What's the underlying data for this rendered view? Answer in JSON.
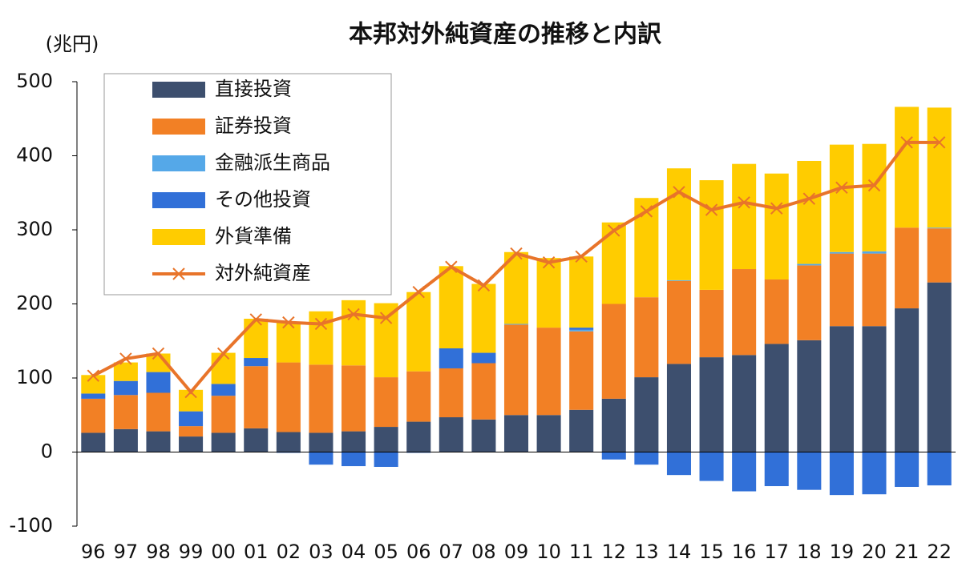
{
  "chart_data": {
    "type": "bar",
    "stacked": true,
    "title": "本邦対外純資産の推移と内訳",
    "y_label": "(兆円)",
    "categories": [
      "96",
      "97",
      "98",
      "99",
      "00",
      "01",
      "02",
      "03",
      "04",
      "05",
      "06",
      "07",
      "08",
      "09",
      "10",
      "11",
      "12",
      "13",
      "14",
      "15",
      "16",
      "17",
      "18",
      "19",
      "20",
      "21",
      "22"
    ],
    "ylim": [
      -100,
      500
    ],
    "yticks": [
      -100,
      0,
      100,
      200,
      300,
      400,
      500
    ],
    "legend": "upper left",
    "series": [
      {
        "name": "直接投資",
        "color": "#3d4f6e",
        "values": [
          26,
          31,
          28,
          21,
          26,
          32,
          27,
          26,
          28,
          34,
          41,
          47,
          44,
          50,
          50,
          57,
          72,
          101,
          119,
          128,
          131,
          146,
          151,
          170,
          170,
          194,
          229
        ]
      },
      {
        "name": "証券投資",
        "color": "#f28025",
        "values": [
          46,
          46,
          52,
          14,
          50,
          84,
          94,
          92,
          89,
          67,
          68,
          66,
          76,
          122,
          118,
          106,
          128,
          108,
          112,
          91,
          116,
          87,
          101,
          98,
          98,
          109,
          73
        ]
      },
      {
        "name": "金融派生商品",
        "color": "#55a8e8",
        "values": [
          0,
          0,
          0,
          0,
          0,
          0,
          0,
          0,
          0,
          0,
          0,
          0,
          0,
          1,
          0,
          2,
          0,
          0,
          1,
          0,
          0,
          0,
          2,
          2,
          3,
          0,
          1
        ]
      },
      {
        "name": "その他投資",
        "color": "#3170d8",
        "values": [
          7,
          19,
          28,
          20,
          16,
          11,
          -1,
          -17,
          -19,
          -20,
          -1,
          27,
          14,
          0,
          0,
          3,
          -10,
          -17,
          -31,
          -39,
          -53,
          -46,
          -51,
          -58,
          -57,
          -47,
          -45
        ]
      },
      {
        "name": "外貨準備",
        "color": "#ffcc00",
        "values": [
          25,
          25,
          25,
          29,
          42,
          53,
          54,
          72,
          88,
          100,
          107,
          111,
          93,
          97,
          94,
          96,
          110,
          134,
          151,
          148,
          142,
          143,
          139,
          145,
          145,
          163,
          162
        ]
      },
      {
        "name": "対外純資産",
        "color": "#e8742a",
        "type": "line",
        "values": [
          103,
          126,
          133,
          81,
          133,
          179,
          175,
          173,
          186,
          181,
          216,
          250,
          225,
          268,
          256,
          264,
          299,
          325,
          351,
          327,
          337,
          329,
          342,
          357,
          360,
          418,
          418
        ]
      }
    ]
  }
}
